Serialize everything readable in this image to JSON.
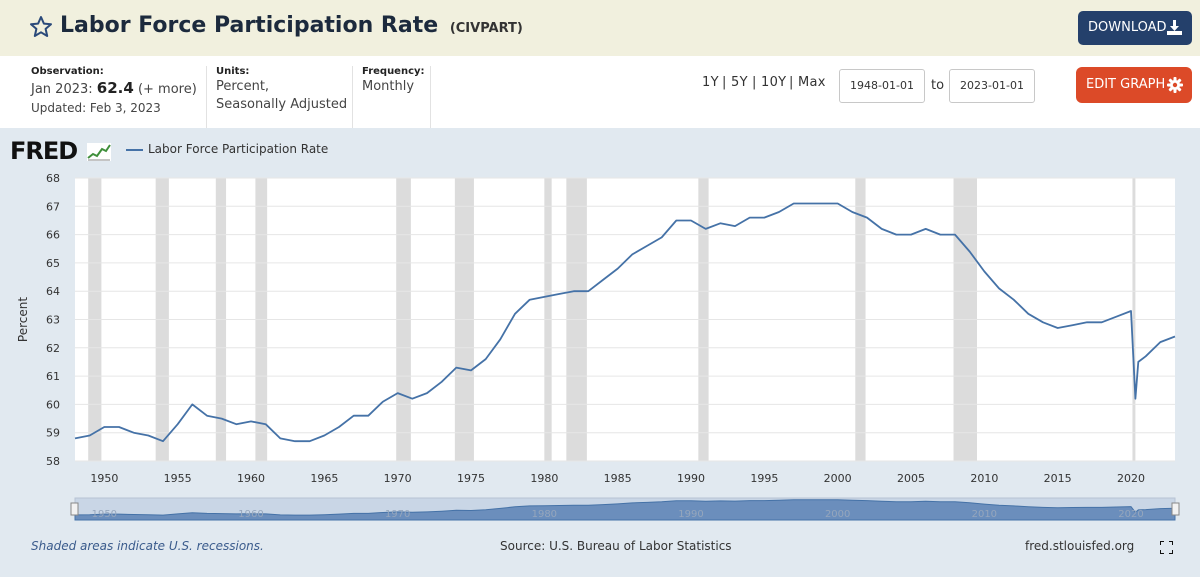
{
  "header": {
    "title": "Labor Force Participation Rate",
    "series_id": "(CIVPART)",
    "download_label": "DOWNLOAD",
    "icons": [
      "star-icon",
      "download-icon"
    ]
  },
  "meta": {
    "observation_label": "Observation:",
    "observation_date": "Jan 2023:",
    "observation_value": "62.4",
    "observation_more": "(+ more)",
    "updated": "Updated: Feb 3, 2023",
    "units_label": "Units:",
    "units_line1": "Percent,",
    "units_line2": "Seasonally Adjusted",
    "frequency_label": "Frequency:",
    "frequency_value": "Monthly"
  },
  "controls": {
    "range_1y": "1Y",
    "range_5y": "5Y",
    "range_10y": "10Y",
    "range_max": "Max",
    "separator": "|",
    "start_date": "1948-01-01",
    "to_label": "to",
    "end_date": "2023-01-01",
    "edit_label": "EDIT GRAPH",
    "icons": [
      "gear-icon",
      "fullscreen-icon"
    ]
  },
  "graph": {
    "logo": "FRED",
    "recession_note": "Shaded areas indicate U.S. recessions.",
    "source": "Source: U.S. Bureau of Labor Statistics",
    "site": "fred.stlouisfed.org"
  },
  "colors": {
    "line": "#4572a7",
    "recession": "#dcdcdc",
    "header_bg": "#f1f0de",
    "graph_bg": "#e1e9f0",
    "download_btn": "#24406b",
    "edit_btn": "#dc4a28"
  },
  "chart_data": {
    "type": "line",
    "series": [
      {
        "name": "Labor Force Participation Rate",
        "x": [
          1948,
          1949,
          1950,
          1951,
          1952,
          1953,
          1954,
          1955,
          1956,
          1957,
          1958,
          1959,
          1960,
          1961,
          1962,
          1963,
          1964,
          1965,
          1966,
          1967,
          1968,
          1969,
          1970,
          1971,
          1972,
          1973,
          1974,
          1975,
          1976,
          1977,
          1978,
          1979,
          1980,
          1981,
          1982,
          1983,
          1984,
          1985,
          1986,
          1987,
          1988,
          1989,
          1990,
          1991,
          1992,
          1993,
          1994,
          1995,
          1996,
          1997,
          1998,
          1999,
          2000,
          2001,
          2002,
          2003,
          2004,
          2005,
          2006,
          2007,
          2008,
          2009,
          2010,
          2011,
          2012,
          2013,
          2014,
          2015,
          2016,
          2017,
          2018,
          2019,
          2020,
          2020.3,
          2020.5,
          2021,
          2022,
          2023
        ],
        "y": [
          58.8,
          58.9,
          59.2,
          59.2,
          59.0,
          58.9,
          58.7,
          59.3,
          60.0,
          59.6,
          59.5,
          59.3,
          59.4,
          59.3,
          58.8,
          58.7,
          58.7,
          58.9,
          59.2,
          59.6,
          59.6,
          60.1,
          60.4,
          60.2,
          60.4,
          60.8,
          61.3,
          61.2,
          61.6,
          62.3,
          63.2,
          63.7,
          63.8,
          63.9,
          64.0,
          64.0,
          64.4,
          64.8,
          65.3,
          65.6,
          65.9,
          66.5,
          66.5,
          66.2,
          66.4,
          66.3,
          66.6,
          66.6,
          66.8,
          67.1,
          67.1,
          67.1,
          67.1,
          66.8,
          66.6,
          66.2,
          66.0,
          66.0,
          66.2,
          66.0,
          66.0,
          65.4,
          64.7,
          64.1,
          63.7,
          63.2,
          62.9,
          62.7,
          62.8,
          62.9,
          62.9,
          63.1,
          63.3,
          60.2,
          61.5,
          61.7,
          62.2,
          62.4
        ]
      }
    ],
    "recessions": [
      [
        1948.9,
        1949.8
      ],
      [
        1953.5,
        1954.4
      ],
      [
        1957.6,
        1958.3
      ],
      [
        1960.3,
        1961.1
      ],
      [
        1969.9,
        1970.9
      ],
      [
        1973.9,
        1975.2
      ],
      [
        1980.0,
        1980.5
      ],
      [
        1981.5,
        1982.9
      ],
      [
        1990.5,
        1991.2
      ],
      [
        2001.2,
        2001.9
      ],
      [
        2007.9,
        2009.5
      ],
      [
        2020.1,
        2020.3
      ]
    ],
    "xlim": [
      1948,
      2023
    ],
    "ylim": [
      58,
      68
    ],
    "x_ticks": [
      1950,
      1955,
      1960,
      1965,
      1970,
      1975,
      1980,
      1985,
      1990,
      1995,
      2000,
      2005,
      2010,
      2015,
      2020
    ],
    "y_ticks": [
      58,
      59,
      60,
      61,
      62,
      63,
      64,
      65,
      66,
      67,
      68
    ],
    "ylabel": "Percent",
    "xlabel": "",
    "legend": "top-left",
    "grid": true
  }
}
